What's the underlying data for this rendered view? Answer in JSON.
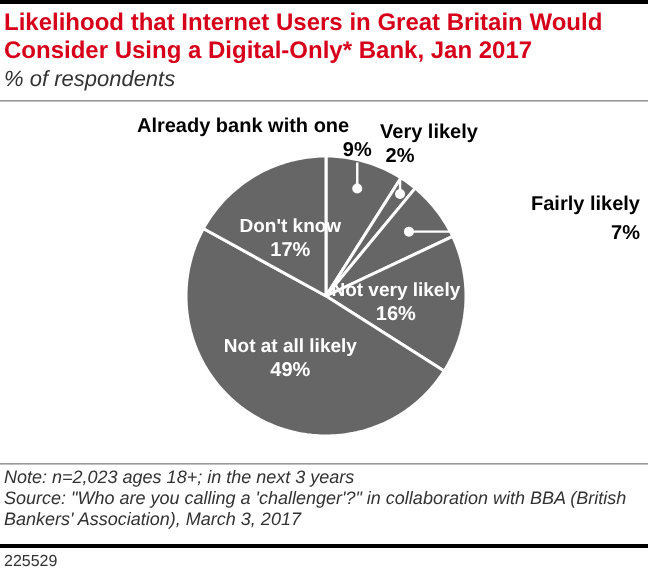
{
  "chart_data": {
    "type": "pie",
    "title": "Likelihood that Internet Users in Great Britain Would Consider Using a Digital-Only* Bank, Jan 2017",
    "subtitle": "% of respondents",
    "categories": [
      "Already bank with one",
      "Very likely",
      "Fairly likely",
      "Not very likely",
      "Not at all likely",
      "Don't know"
    ],
    "values": [
      9,
      2,
      7,
      16,
      49,
      17
    ],
    "colors": [
      "#666666",
      "#666666",
      "#666666",
      "#666666",
      "#666666",
      "#666666"
    ],
    "value_labels": [
      "9%",
      "2%",
      "7%",
      "16%",
      "49%",
      "17%"
    ],
    "annotations": [
      "Note: n=2,023 ages 18+; in the next 3 years",
      "Source: \"Who are you calling a 'challenger'?\" in collaboration with BBA (British Bankers' Association), March 3, 2017",
      "225529"
    ]
  }
}
